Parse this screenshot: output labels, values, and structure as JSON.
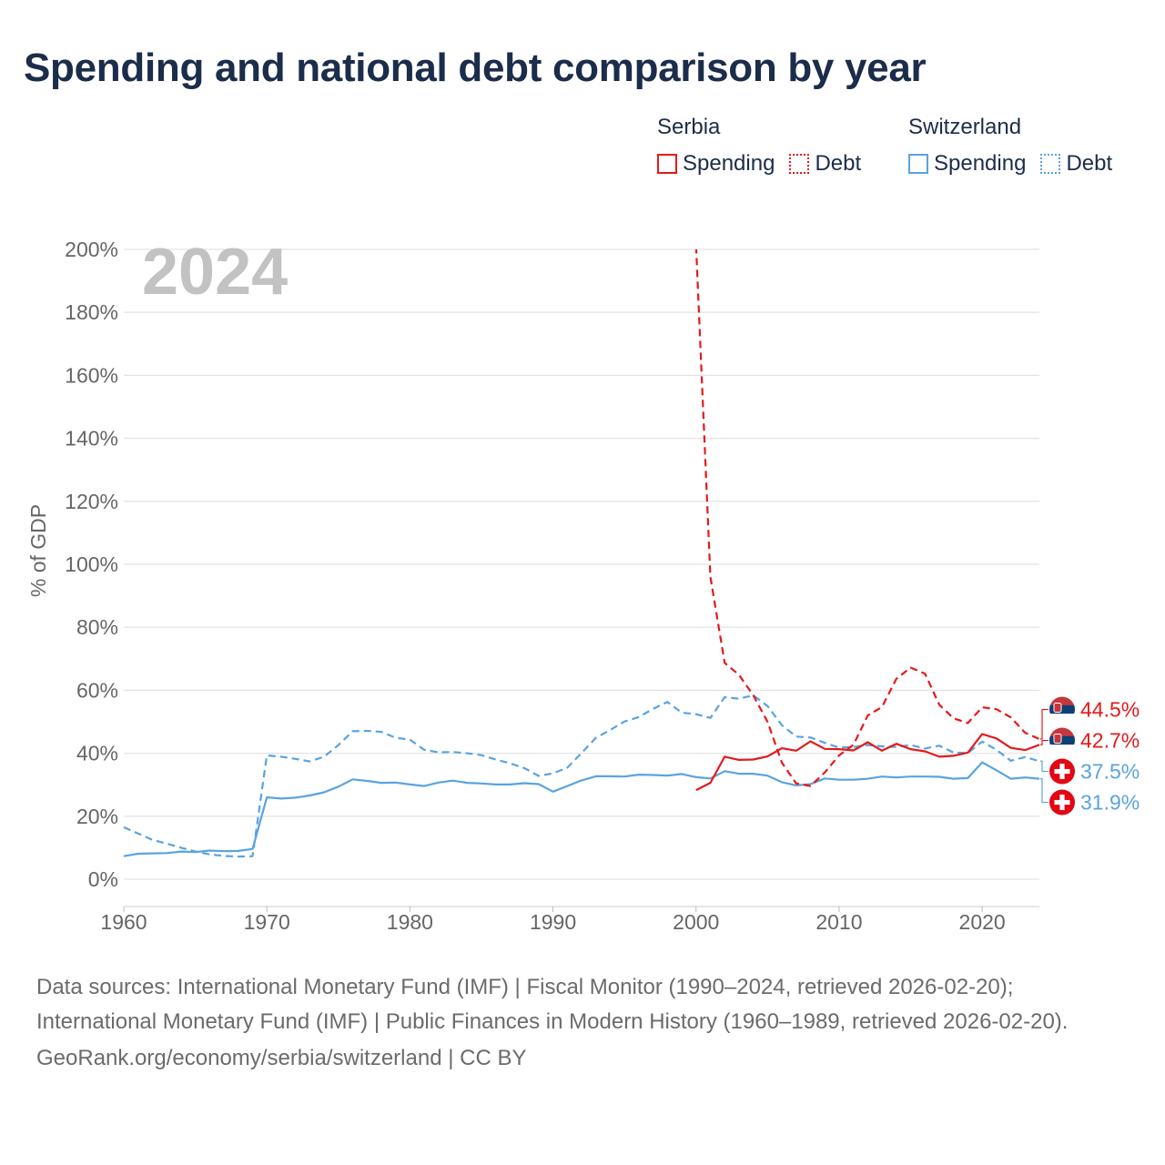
{
  "title": "Spending and national debt comparison by year",
  "legend": {
    "groups": [
      {
        "name": "Serbia",
        "color": "#e31a1c",
        "items": [
          {
            "label": "Spending",
            "style": "solid"
          },
          {
            "label": "Debt",
            "style": "dotted"
          }
        ]
      },
      {
        "name": "Switzerland",
        "color": "#5aa3e0",
        "items": [
          {
            "label": "Spending",
            "style": "solid"
          },
          {
            "label": "Debt",
            "style": "dotted"
          }
        ]
      }
    ]
  },
  "footer": {
    "sources": "Data sources: International Monetary Fund (IMF) | Fiscal Monitor (1990–2024, retrieved 2026-02-20); International Monetary Fund (IMF) | Public Finances in Modern History (1960–1989, retrieved 2026-02-20).",
    "credit": "GeoRank.org/economy/serbia/switzerland | CC BY"
  },
  "chart_data": {
    "type": "line",
    "year_watermark": "2024",
    "ylabel": "% of GDP",
    "xlabel": "",
    "xlim": [
      1960,
      2024
    ],
    "ylim": [
      0,
      200
    ],
    "x_ticks": [
      1960,
      1970,
      1980,
      1990,
      2000,
      2010,
      2020
    ],
    "y_ticks": [
      0,
      20,
      40,
      60,
      80,
      100,
      120,
      140,
      160,
      180,
      200
    ],
    "y_tick_labels": [
      "0%",
      "20%",
      "40%",
      "60%",
      "80%",
      "100%",
      "120%",
      "140%",
      "160%",
      "180%",
      "200%"
    ],
    "grid": true,
    "series": [
      {
        "name": "Switzerland Spending",
        "country": "Switzerland",
        "metric": "Spending",
        "color": "#5aa3e0",
        "dash": "solid",
        "points": [
          [
            1960,
            7.3
          ],
          [
            1961,
            8.1
          ],
          [
            1962,
            8.2
          ],
          [
            1963,
            8.3
          ],
          [
            1964,
            8.8
          ],
          [
            1965,
            8.6
          ],
          [
            1966,
            9.1
          ],
          [
            1967,
            8.9
          ],
          [
            1968,
            9
          ],
          [
            1969,
            9.6
          ],
          [
            1970,
            26
          ],
          [
            1971,
            25.6
          ],
          [
            1972,
            25.9
          ],
          [
            1973,
            26.6
          ],
          [
            1974,
            27.6
          ],
          [
            1975,
            29.4
          ],
          [
            1976,
            31.7
          ],
          [
            1977,
            31.2
          ],
          [
            1978,
            30.6
          ],
          [
            1979,
            30.7
          ],
          [
            1980,
            30.1
          ],
          [
            1981,
            29.6
          ],
          [
            1982,
            30.7
          ],
          [
            1983,
            31.3
          ],
          [
            1984,
            30.6
          ],
          [
            1985,
            30.4
          ],
          [
            1986,
            30.1
          ],
          [
            1987,
            30.1
          ],
          [
            1988,
            30.5
          ],
          [
            1989,
            30.2
          ],
          [
            1990,
            27.8
          ],
          [
            1991,
            29.6
          ],
          [
            1992,
            31.4
          ],
          [
            1993,
            32.7
          ],
          [
            1994,
            32.7
          ],
          [
            1995,
            32.6
          ],
          [
            1996,
            33.2
          ],
          [
            1997,
            33.1
          ],
          [
            1998,
            32.9
          ],
          [
            1999,
            33.4
          ],
          [
            2000,
            32.4
          ],
          [
            2001,
            32
          ],
          [
            2002,
            34.3
          ],
          [
            2003,
            33.5
          ],
          [
            2004,
            33.5
          ],
          [
            2005,
            32.9
          ],
          [
            2006,
            30.8
          ],
          [
            2007,
            29.8
          ],
          [
            2008,
            30.2
          ],
          [
            2009,
            32
          ],
          [
            2010,
            31.6
          ],
          [
            2011,
            31.6
          ],
          [
            2012,
            31.9
          ],
          [
            2013,
            32.6
          ],
          [
            2014,
            32.3
          ],
          [
            2015,
            32.6
          ],
          [
            2016,
            32.6
          ],
          [
            2017,
            32.5
          ],
          [
            2018,
            31.9
          ],
          [
            2019,
            32.1
          ],
          [
            2020,
            37.1
          ],
          [
            2021,
            34.6
          ],
          [
            2022,
            31.9
          ],
          [
            2023,
            32.3
          ],
          [
            2024,
            31.9
          ]
        ]
      },
      {
        "name": "Switzerland Debt",
        "country": "Switzerland",
        "metric": "Debt",
        "color": "#5aa3e0",
        "dash": "dashed",
        "points": [
          [
            1960,
            16.5
          ],
          [
            1961,
            14.5
          ],
          [
            1962,
            12.5
          ],
          [
            1963,
            11.3
          ],
          [
            1964,
            10
          ],
          [
            1965,
            8.8
          ],
          [
            1966,
            7.9
          ],
          [
            1967,
            7.4
          ],
          [
            1968,
            7.2
          ],
          [
            1969,
            7.3
          ],
          [
            1970,
            39.3
          ],
          [
            1971,
            38.9
          ],
          [
            1972,
            38.2
          ],
          [
            1973,
            37.4
          ],
          [
            1974,
            38.9
          ],
          [
            1975,
            42.6
          ],
          [
            1976,
            47
          ],
          [
            1977,
            47.1
          ],
          [
            1978,
            46.8
          ],
          [
            1979,
            44.9
          ],
          [
            1980,
            44.3
          ],
          [
            1981,
            41.1
          ],
          [
            1982,
            40.3
          ],
          [
            1983,
            40.4
          ],
          [
            1984,
            40
          ],
          [
            1985,
            39.4
          ],
          [
            1986,
            38
          ],
          [
            1987,
            36.8
          ],
          [
            1988,
            35.3
          ],
          [
            1989,
            32.8
          ],
          [
            1990,
            33.6
          ],
          [
            1991,
            35.4
          ],
          [
            1992,
            40.1
          ],
          [
            1993,
            44.9
          ],
          [
            1994,
            47.4
          ],
          [
            1995,
            50.1
          ],
          [
            1996,
            51.5
          ],
          [
            1997,
            54.1
          ],
          [
            1998,
            56.3
          ],
          [
            1999,
            52.9
          ],
          [
            2000,
            52.4
          ],
          [
            2001,
            51.2
          ],
          [
            2002,
            57.8
          ],
          [
            2003,
            57.3
          ],
          [
            2004,
            58.4
          ],
          [
            2005,
            55
          ],
          [
            2006,
            48.9
          ],
          [
            2007,
            45.3
          ],
          [
            2008,
            45
          ],
          [
            2009,
            43.3
          ],
          [
            2010,
            41.8
          ],
          [
            2011,
            42
          ],
          [
            2012,
            42.6
          ],
          [
            2013,
            42.2
          ],
          [
            2014,
            42
          ],
          [
            2015,
            42.6
          ],
          [
            2016,
            41.5
          ],
          [
            2017,
            42.4
          ],
          [
            2018,
            40.2
          ],
          [
            2019,
            40.1
          ],
          [
            2020,
            43.7
          ],
          [
            2021,
            41.1
          ],
          [
            2022,
            37.6
          ],
          [
            2023,
            38.8
          ],
          [
            2024,
            37.5
          ]
        ]
      },
      {
        "name": "Serbia Spending",
        "country": "Serbia",
        "metric": "Spending",
        "color": "#e31a1c",
        "dash": "solid",
        "points": [
          [
            2000,
            28.3
          ],
          [
            2001,
            30.6
          ],
          [
            2002,
            38.9
          ],
          [
            2003,
            37.9
          ],
          [
            2004,
            38
          ],
          [
            2005,
            39
          ],
          [
            2006,
            41.6
          ],
          [
            2007,
            40.8
          ],
          [
            2008,
            43.8
          ],
          [
            2009,
            41.4
          ],
          [
            2010,
            41.3
          ],
          [
            2011,
            40.9
          ],
          [
            2012,
            43.5
          ],
          [
            2013,
            40.8
          ],
          [
            2014,
            43
          ],
          [
            2015,
            41.3
          ],
          [
            2016,
            40.6
          ],
          [
            2017,
            38.9
          ],
          [
            2018,
            39.2
          ],
          [
            2019,
            40.2
          ],
          [
            2020,
            46.1
          ],
          [
            2021,
            44.7
          ],
          [
            2022,
            41.7
          ],
          [
            2023,
            41
          ],
          [
            2024,
            42.7
          ]
        ]
      },
      {
        "name": "Serbia Debt",
        "country": "Serbia",
        "metric": "Debt",
        "color": "#e31a1c",
        "dash": "dashed",
        "points": [
          [
            2000,
            201
          ],
          [
            2001,
            96
          ],
          [
            2002,
            68.7
          ],
          [
            2003,
            64.9
          ],
          [
            2004,
            58.4
          ],
          [
            2005,
            50
          ],
          [
            2006,
            37
          ],
          [
            2007,
            30.4
          ],
          [
            2008,
            29.6
          ],
          [
            2009,
            33.9
          ],
          [
            2010,
            39.3
          ],
          [
            2011,
            42.7
          ],
          [
            2012,
            52
          ],
          [
            2013,
            54.7
          ],
          [
            2014,
            63.6
          ],
          [
            2015,
            67.2
          ],
          [
            2016,
            65.3
          ],
          [
            2017,
            55.4
          ],
          [
            2018,
            51.1
          ],
          [
            2019,
            49.6
          ],
          [
            2020,
            54.6
          ],
          [
            2021,
            54
          ],
          [
            2022,
            51.4
          ],
          [
            2023,
            46.5
          ],
          [
            2024,
            44.5
          ]
        ]
      }
    ],
    "end_labels": [
      {
        "text": "44.5%",
        "country": "Serbia",
        "metric": "Debt",
        "value": 44.5,
        "color": "#e31a1c"
      },
      {
        "text": "42.7%",
        "country": "Serbia",
        "metric": "Spending",
        "value": 42.7,
        "color": "#e31a1c"
      },
      {
        "text": "37.5%",
        "country": "Switzerland",
        "metric": "Debt",
        "value": 37.5,
        "color": "#5aa3e0"
      },
      {
        "text": "31.9%",
        "country": "Switzerland",
        "metric": "Spending",
        "value": 31.9,
        "color": "#5aa3e0"
      }
    ]
  }
}
